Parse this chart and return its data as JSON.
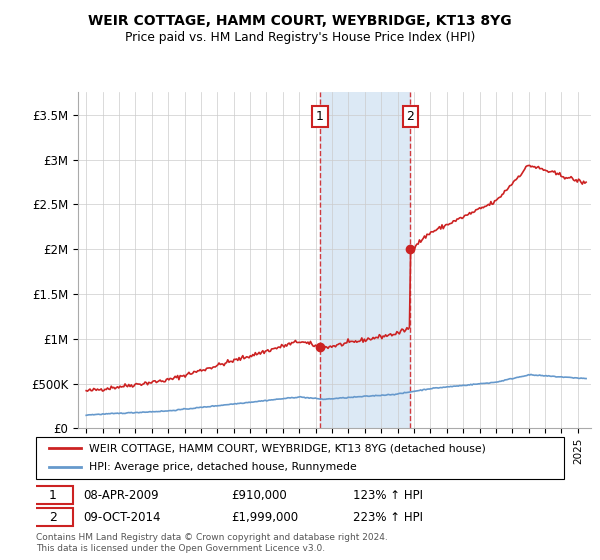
{
  "title": "WEIR COTTAGE, HAMM COURT, WEYBRIDGE, KT13 8YG",
  "subtitle": "Price paid vs. HM Land Registry's House Price Index (HPI)",
  "legend_line1": "WEIR COTTAGE, HAMM COURT, WEYBRIDGE, KT13 8YG (detached house)",
  "legend_line2": "HPI: Average price, detached house, Runnymede",
  "footnote": "Contains HM Land Registry data © Crown copyright and database right 2024.\nThis data is licensed under the Open Government Licence v3.0.",
  "transaction1_date": "08-APR-2009",
  "transaction1_price": "£910,000",
  "transaction1_hpi": "123% ↑ HPI",
  "transaction2_date": "09-OCT-2014",
  "transaction2_price": "£1,999,000",
  "transaction2_hpi": "223% ↑ HPI",
  "ylim": [
    0,
    3750000
  ],
  "yticks": [
    0,
    500000,
    1000000,
    1500000,
    2000000,
    2500000,
    3000000,
    3500000
  ],
  "ytick_labels": [
    "£0",
    "£500K",
    "£1M",
    "£1.5M",
    "£2M",
    "£2.5M",
    "£3M",
    "£3.5M"
  ],
  "hpi_color": "#6699cc",
  "property_color": "#cc2222",
  "shade_color": "#dce9f5",
  "vline_color": "#cc0000",
  "marker_color": "#cc2222",
  "transaction1_x": 2009.27,
  "transaction2_x": 2014.77,
  "background_color": "#ffffff",
  "grid_color": "#cccccc",
  "price1": 910000,
  "price2": 1999000
}
